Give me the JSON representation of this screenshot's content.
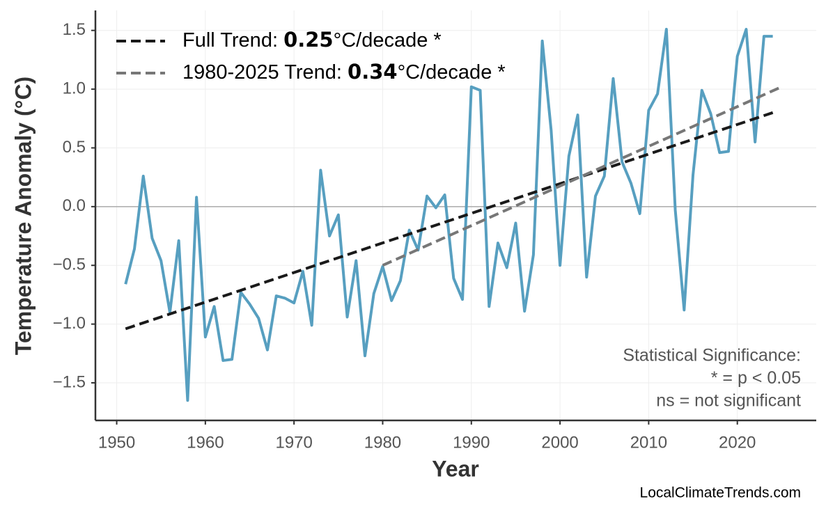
{
  "chart_data": {
    "type": "line",
    "xlabel": "Year",
    "ylabel": "Temperature Anomaly (°C)",
    "x": [
      1951,
      1952,
      1953,
      1954,
      1955,
      1956,
      1957,
      1958,
      1959,
      1960,
      1961,
      1962,
      1963,
      1964,
      1965,
      1966,
      1967,
      1968,
      1969,
      1970,
      1971,
      1972,
      1973,
      1974,
      1975,
      1976,
      1977,
      1978,
      1979,
      1980,
      1981,
      1982,
      1983,
      1984,
      1985,
      1986,
      1987,
      1988,
      1989,
      1990,
      1991,
      1992,
      1993,
      1994,
      1995,
      1996,
      1997,
      1998,
      1999,
      2000,
      2001,
      2002,
      2003,
      2004,
      2005,
      2006,
      2007,
      2008,
      2009,
      2010,
      2011,
      2012,
      2013,
      2014,
      2015,
      2016,
      2017,
      2018,
      2019,
      2020,
      2021,
      2022,
      2023,
      2024
    ],
    "series": [
      {
        "color": "#579fc0",
        "values": [
          -0.66,
          -0.36,
          0.26,
          -0.27,
          -0.46,
          -0.9,
          -0.29,
          -1.65,
          0.08,
          -1.11,
          -0.85,
          -1.31,
          -1.3,
          -0.73,
          -0.83,
          -0.95,
          -1.22,
          -0.76,
          -0.78,
          -0.82,
          -0.55,
          -1.01,
          0.31,
          -0.25,
          -0.07,
          -0.94,
          -0.46,
          -1.27,
          -0.74,
          -0.51,
          -0.8,
          -0.63,
          -0.2,
          -0.37,
          0.09,
          -0.01,
          0.1,
          -0.61,
          -0.79,
          1.02,
          0.99,
          -0.85,
          -0.31,
          -0.52,
          -0.14,
          -0.89,
          -0.41,
          1.41,
          0.65,
          -0.5,
          0.43,
          0.78,
          -0.6,
          0.09,
          0.26,
          1.09,
          0.38,
          0.2,
          -0.06,
          0.82,
          0.96,
          1.51,
          -0.03,
          -0.88,
          0.27,
          0.99,
          0.79,
          0.46,
          0.47,
          1.28,
          1.51,
          0.55,
          1.45,
          1.45
        ]
      },
      {
        "name": "Full Trend: 0.25°C/decade *",
        "color": "#1a1a1a",
        "dashed": true,
        "x": [
          1951,
          2024
        ],
        "values": [
          -1.04,
          0.8
        ]
      },
      {
        "name": "1980-2025 Trend: 0.34°C/decade *",
        "color": "#777777",
        "dashed": true,
        "x": [
          1980,
          2025
        ],
        "values": [
          -0.5,
          1.02
        ]
      }
    ],
    "xlim": [
      1947.6,
      2028.9
    ],
    "ylim": [
      -1.82,
      1.67
    ],
    "xticks": [
      1950,
      1960,
      1970,
      1980,
      1990,
      2000,
      2010,
      2020
    ],
    "yticks": [
      {
        "value": -1.5,
        "label": "−1.5"
      },
      {
        "value": -1.0,
        "label": "−1.0"
      },
      {
        "value": -0.5,
        "label": "−0.5"
      },
      {
        "value": 0,
        "label": "0.0"
      },
      0.5,
      {
        "value": 1.0,
        "label": "1.0"
      },
      1.5
    ],
    "grid": true,
    "zero_line": true,
    "legend": "upper left",
    "annotation_lines": [
      "Statistical Significance:",
      "* = p < 0.05",
      "ns = not significant"
    ],
    "source": "LocalClimateTrends.com"
  }
}
